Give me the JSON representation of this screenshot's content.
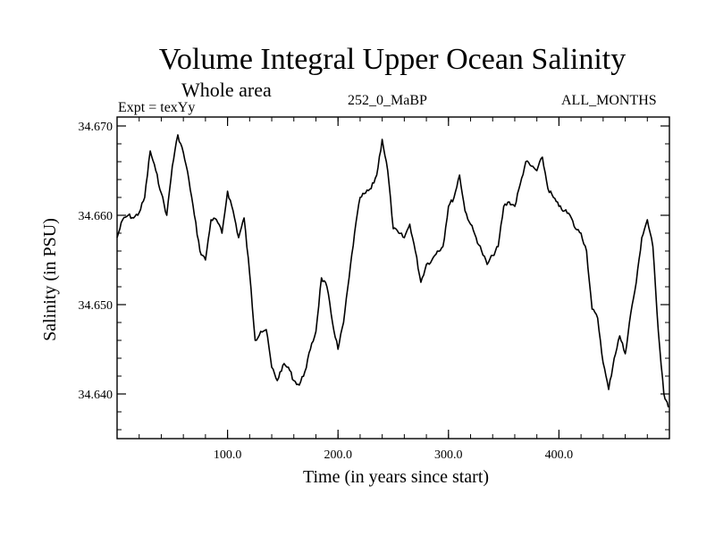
{
  "header": {
    "title": "Volume Integral Upper Ocean Salinity",
    "subtitle": "Whole area",
    "expt": "Expt = texYy",
    "run_id": "252_0_MaBP",
    "months": "ALL_MONTHS"
  },
  "chart_data": {
    "type": "line",
    "title": "Volume Integral Upper Ocean Salinity",
    "xlabel": "Time (in years since start)",
    "ylabel": "Salinity (in PSU)",
    "xlim": [
      0,
      500
    ],
    "ylim": [
      34.635,
      34.671
    ],
    "xticks": [
      {
        "value": 100,
        "label": "100.0"
      },
      {
        "value": 200,
        "label": "200.0"
      },
      {
        "value": 300,
        "label": "300.0"
      },
      {
        "value": 400,
        "label": "400.0"
      }
    ],
    "yticks": [
      {
        "value": 34.64,
        "label": "34.640"
      },
      {
        "value": 34.65,
        "label": "34.650"
      },
      {
        "value": 34.66,
        "label": "34.660"
      },
      {
        "value": 34.67,
        "label": "34.670"
      }
    ],
    "grid": false,
    "color": "#000000",
    "series": [
      {
        "x": [
          0,
          5,
          10,
          15,
          20,
          25,
          30,
          35,
          40,
          45,
          50,
          55,
          60,
          65,
          70,
          75,
          80,
          85,
          90,
          95,
          100,
          105,
          110,
          115,
          120,
          125,
          130,
          135,
          140,
          145,
          150,
          155,
          160,
          165,
          170,
          175,
          180,
          185,
          190,
          195,
          200,
          205,
          210,
          215,
          220,
          225,
          230,
          235,
          240,
          245,
          250,
          255,
          260,
          265,
          270,
          275,
          280,
          285,
          290,
          295,
          300,
          305,
          310,
          315,
          320,
          325,
          330,
          335,
          340,
          345,
          350,
          355,
          360,
          365,
          370,
          375,
          380,
          385,
          390,
          395,
          400,
          405,
          410,
          415,
          420,
          425,
          430,
          435,
          440,
          445,
          450,
          455,
          460,
          465,
          470,
          475,
          480,
          485,
          490,
          495,
          499
        ],
        "y": [
          34.6575,
          34.6595,
          34.66,
          34.6597,
          34.6603,
          34.662,
          34.6672,
          34.665,
          34.6625,
          34.66,
          34.6655,
          34.669,
          34.667,
          34.664,
          34.66,
          34.656,
          34.655,
          34.6595,
          34.6595,
          34.658,
          34.6627,
          34.6605,
          34.6575,
          34.6597,
          34.6535,
          34.646,
          34.647,
          34.6472,
          34.643,
          34.6415,
          34.6432,
          34.643,
          34.6415,
          34.641,
          34.6425,
          34.645,
          34.647,
          34.653,
          34.652,
          34.648,
          34.645,
          34.648,
          34.653,
          34.658,
          34.662,
          34.6625,
          34.663,
          34.6645,
          34.6685,
          34.665,
          34.6585,
          34.658,
          34.6575,
          34.659,
          34.656,
          34.6525,
          34.6545,
          34.655,
          34.656,
          34.6565,
          34.661,
          34.662,
          34.6645,
          34.6605,
          34.659,
          34.6575,
          34.656,
          34.6545,
          34.6555,
          34.6565,
          34.661,
          34.6615,
          34.661,
          34.6635,
          34.666,
          34.6655,
          34.665,
          34.6665,
          34.663,
          34.662,
          34.661,
          34.6605,
          34.66,
          34.6585,
          34.658,
          34.656,
          34.6495,
          34.6485,
          34.6435,
          34.6405,
          34.644,
          34.6465,
          34.6445,
          34.649,
          34.6525,
          34.6575,
          34.6595,
          34.6565,
          34.647,
          34.64,
          34.6385
        ]
      }
    ]
  }
}
